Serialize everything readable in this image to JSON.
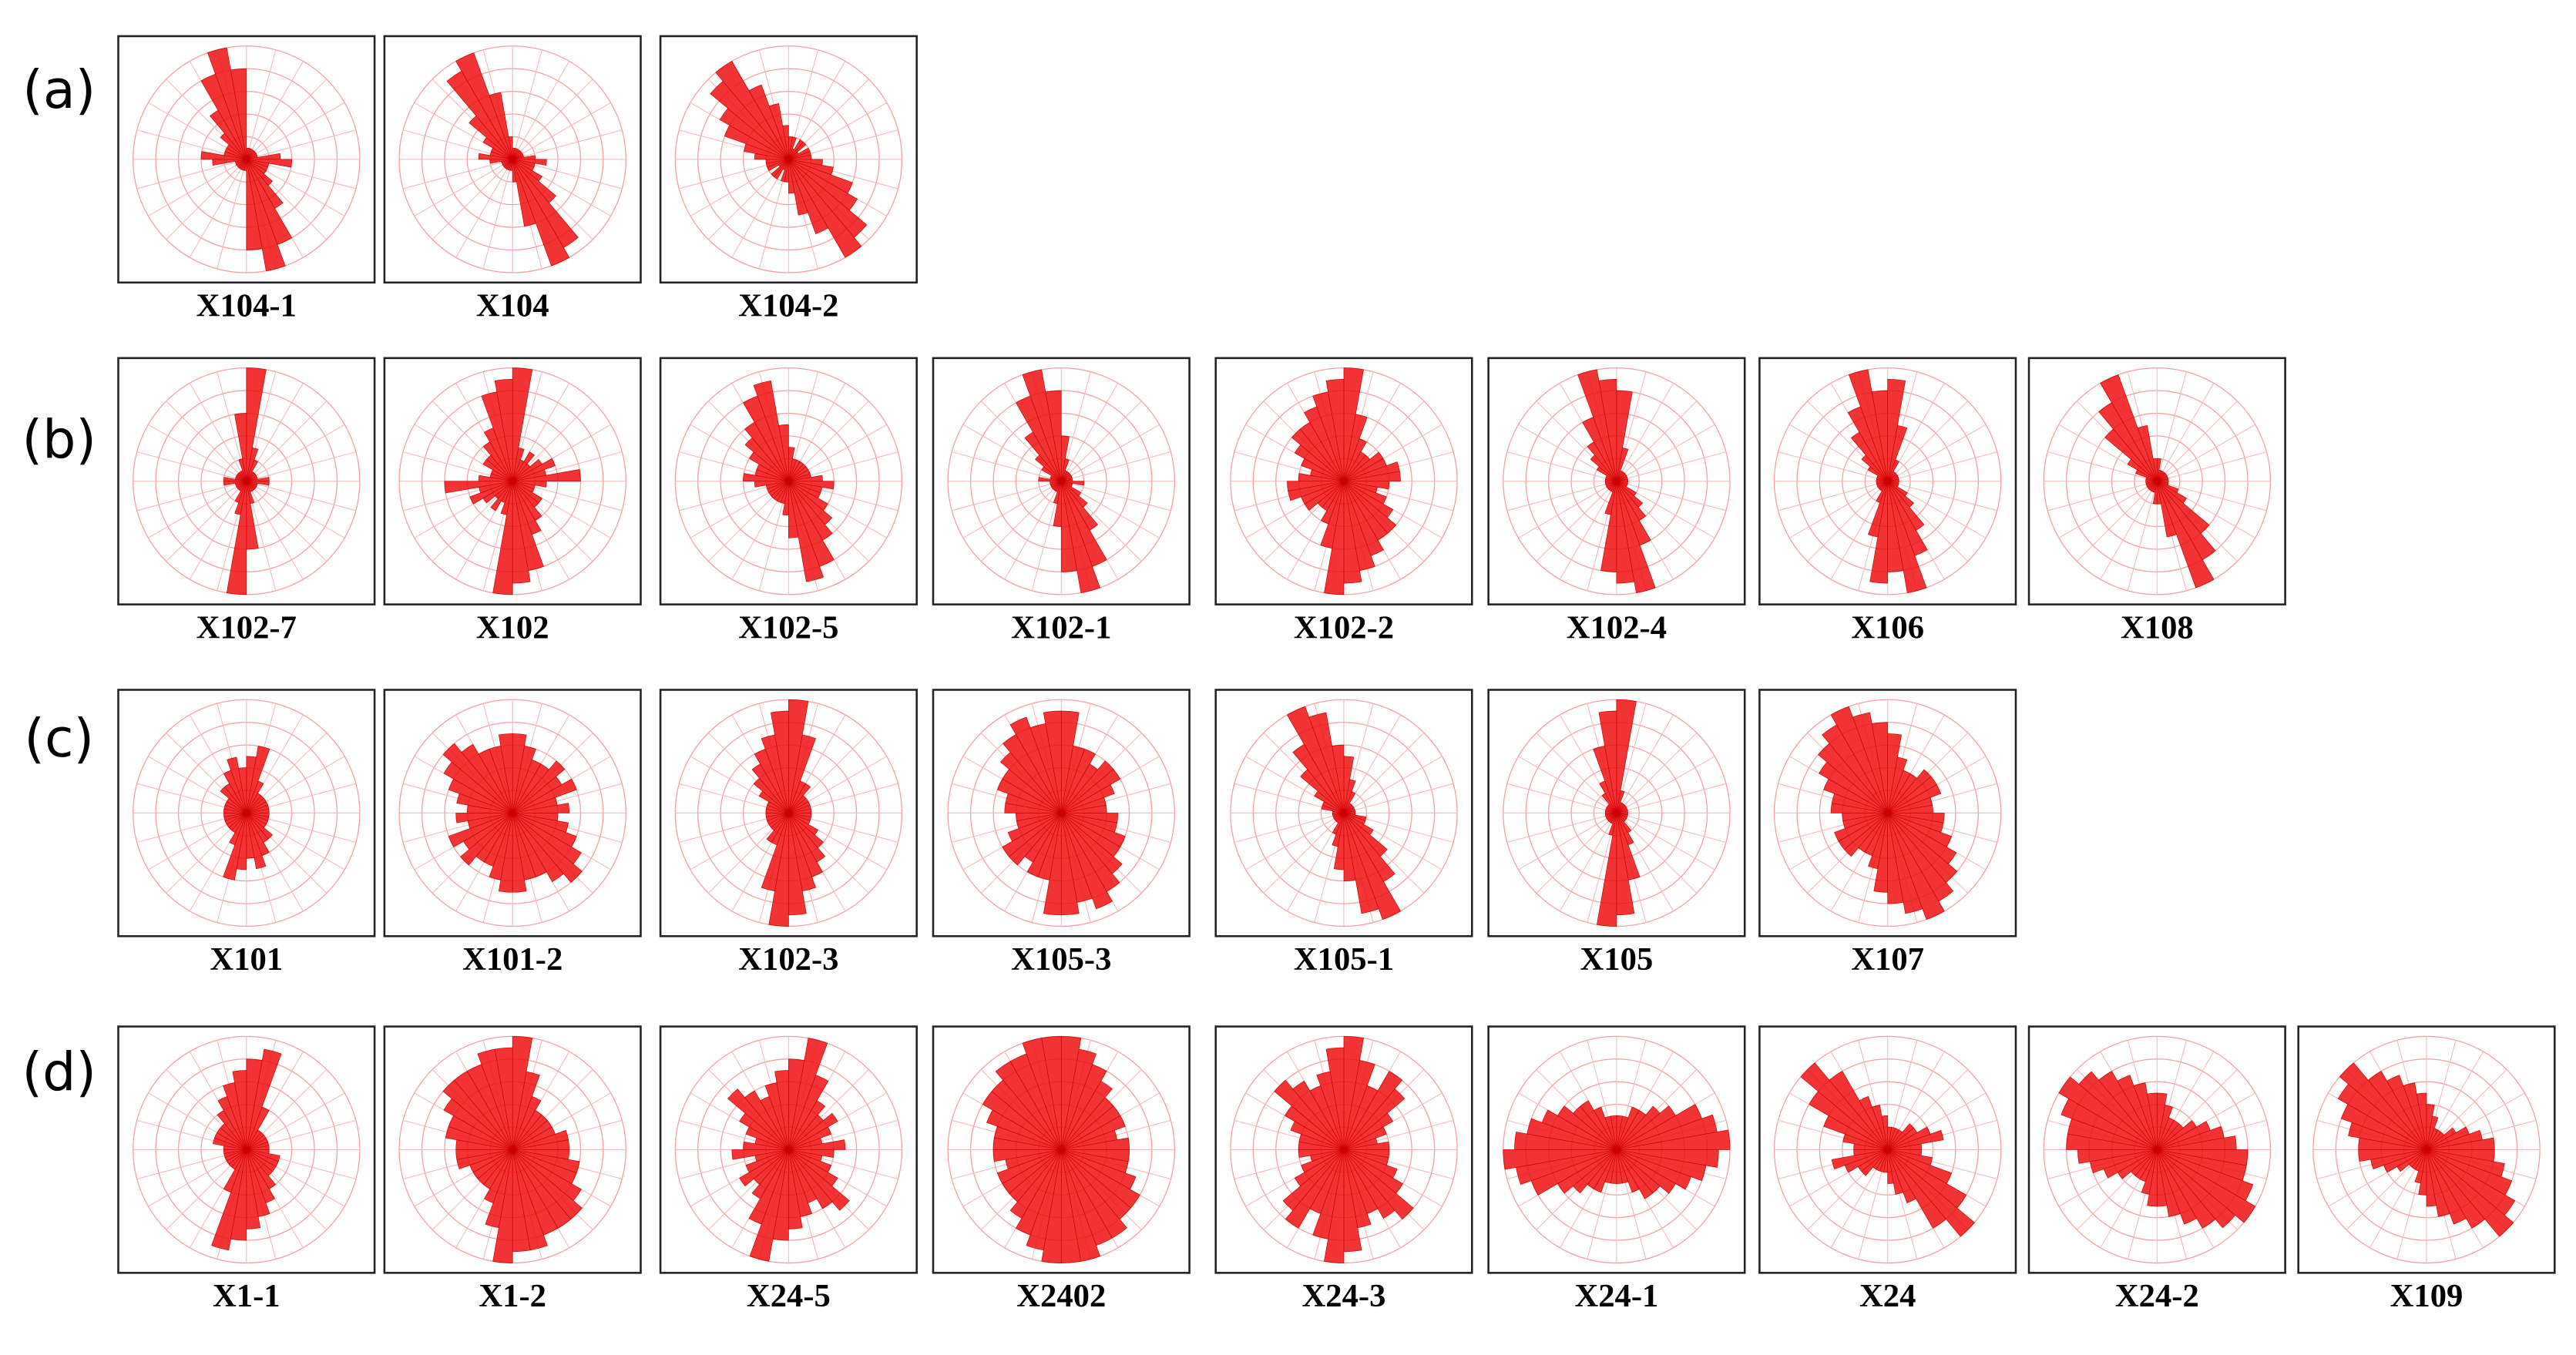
{
  "panels": [
    {
      "label": "(a)",
      "charts": [
        {
          "type": "rose",
          "title": "X104-1",
          "rlim": [
            0,
            10
          ],
          "values": [
            1,
            1,
            1,
            1,
            1,
            1,
            1,
            1,
            3,
            4,
            2,
            2,
            2,
            3,
            5,
            8,
            10,
            8
          ]
        },
        {
          "type": "rose",
          "title": "X104",
          "rlim": [
            0,
            10
          ],
          "values": [
            1,
            1,
            1,
            1,
            1,
            1,
            1,
            1,
            2,
            3,
            2,
            2,
            3,
            5,
            9,
            10,
            6,
            2
          ]
        },
        {
          "type": "rose",
          "title": "X104-2",
          "rlim": [
            0,
            10
          ],
          "values": [
            2,
            2,
            1,
            2,
            2,
            1,
            2,
            2,
            2,
            3,
            4,
            6,
            7,
            9,
            10,
            7,
            5,
            3
          ]
        }
      ]
    },
    {
      "label": "(b)",
      "charts": [
        {
          "type": "rose",
          "title": "X102-7",
          "rlim": [
            0,
            10
          ],
          "values": [
            10,
            3,
            2,
            1,
            1,
            1,
            1,
            1,
            2,
            2,
            1,
            1,
            1,
            1,
            1,
            1,
            2,
            6
          ]
        },
        {
          "type": "rose",
          "title": "X102",
          "rlim": [
            0,
            10
          ],
          "values": [
            10,
            3,
            2,
            3,
            2,
            3,
            4,
            3,
            6,
            3,
            2,
            2,
            3,
            3,
            4,
            5,
            8,
            9
          ]
        },
        {
          "type": "rose",
          "title": "X102-5",
          "rlim": [
            0,
            10
          ],
          "values": [
            3,
            2,
            2,
            2,
            2,
            2,
            2,
            2,
            3,
            4,
            3,
            3,
            4,
            5,
            6,
            8,
            9,
            5
          ]
        },
        {
          "type": "rose",
          "title": "X102-1",
          "rlim": [
            0,
            10
          ],
          "values": [
            4,
            2,
            1,
            1,
            1,
            1,
            1,
            1,
            1,
            2,
            1,
            1,
            2,
            3,
            5,
            8,
            10,
            8
          ]
        },
        {
          "type": "rose",
          "title": "X102-2",
          "rlim": [
            0,
            10
          ],
          "values": [
            10,
            6,
            4,
            3,
            3,
            4,
            4,
            5,
            5,
            4,
            3,
            4,
            5,
            6,
            6,
            7,
            8,
            9
          ]
        },
        {
          "type": "rose",
          "title": "X102-4",
          "rlim": [
            0,
            10
          ],
          "values": [
            8,
            3,
            1,
            1,
            1,
            1,
            1,
            1,
            1,
            1,
            1,
            1,
            2,
            3,
            4,
            6,
            10,
            9
          ]
        },
        {
          "type": "rose",
          "title": "X106",
          "rlim": [
            0,
            10
          ],
          "values": [
            9,
            5,
            2,
            1,
            1,
            1,
            1,
            1,
            1,
            1,
            1,
            1,
            2,
            3,
            5,
            7,
            10,
            8
          ]
        },
        {
          "type": "rose",
          "title": "X108",
          "rlim": [
            0,
            10
          ],
          "values": [
            2,
            1,
            1,
            1,
            1,
            1,
            1,
            1,
            1,
            1,
            1,
            2,
            3,
            6,
            8,
            10,
            5,
            2
          ]
        }
      ]
    },
    {
      "label": "(c)",
      "charts": [
        {
          "type": "rose",
          "title": "X101",
          "rlim": [
            0,
            10
          ],
          "values": [
            5,
            6,
            3,
            2,
            2,
            2,
            2,
            2,
            2,
            2,
            2,
            2,
            2,
            3,
            3,
            4,
            5,
            4
          ]
        },
        {
          "type": "rose",
          "title": "X101-2",
          "rlim": [
            0,
            10
          ],
          "values": [
            7,
            6,
            5,
            5,
            6,
            5,
            6,
            4,
            5,
            4,
            5,
            6,
            7,
            8,
            7,
            6,
            6,
            7
          ]
        },
        {
          "type": "rose",
          "title": "X102-3",
          "rlim": [
            0,
            10
          ],
          "values": [
            10,
            7,
            3,
            3,
            2,
            2,
            2,
            2,
            2,
            2,
            2,
            2,
            3,
            4,
            5,
            6,
            7,
            9
          ]
        },
        {
          "type": "rose",
          "title": "X105-3",
          "rlim": [
            0,
            10
          ],
          "values": [
            9,
            6,
            6,
            5,
            6,
            6,
            5,
            4,
            4,
            5,
            5,
            6,
            6,
            7,
            8,
            9,
            8,
            9
          ]
        },
        {
          "type": "rose",
          "title": "X105-1",
          "rlim": [
            0,
            10
          ],
          "values": [
            5,
            3,
            2,
            1,
            1,
            1,
            1,
            1,
            1,
            1,
            2,
            2,
            3,
            5,
            7,
            10,
            9,
            6
          ]
        },
        {
          "type": "rose",
          "title": "X105",
          "rlim": [
            0,
            10
          ],
          "values": [
            10,
            2,
            1,
            1,
            1,
            1,
            1,
            1,
            1,
            1,
            1,
            1,
            1,
            1,
            2,
            3,
            6,
            9
          ]
        },
        {
          "type": "rose",
          "title": "X107",
          "rlim": [
            0,
            10
          ],
          "values": [
            7,
            5,
            4,
            4,
            5,
            5,
            5,
            4,
            4,
            5,
            5,
            6,
            7,
            8,
            9,
            10,
            9,
            8
          ]
        }
      ]
    },
    {
      "label": "(d)",
      "charts": [
        {
          "type": "rose",
          "title": "X1-1",
          "rlim": [
            0,
            10
          ],
          "values": [
            8,
            9,
            4,
            2,
            2,
            2,
            2,
            2,
            2,
            2,
            3,
            3,
            3,
            3,
            4,
            5,
            6,
            7
          ]
        },
        {
          "type": "rose",
          "title": "X1-2",
          "rlim": [
            0,
            10
          ],
          "values": [
            10,
            7,
            5,
            4,
            4,
            4,
            4,
            5,
            5,
            5,
            6,
            6,
            7,
            8,
            8,
            8,
            9,
            9
          ]
        },
        {
          "type": "rose",
          "title": "X24-5",
          "rlim": [
            0,
            10
          ],
          "values": [
            8,
            10,
            7,
            5,
            4,
            5,
            4,
            3,
            5,
            4,
            3,
            4,
            5,
            7,
            6,
            5,
            6,
            7
          ]
        },
        {
          "type": "rose",
          "title": "X2402",
          "rlim": [
            0,
            10
          ],
          "values": [
            10,
            9,
            8,
            7,
            6,
            6,
            6,
            5,
            6,
            6,
            6,
            7,
            8,
            8,
            9,
            9,
            10,
            10
          ]
        },
        {
          "type": "rose",
          "title": "X24-3",
          "rlim": [
            0,
            10
          ],
          "values": [
            10,
            8,
            6,
            8,
            7,
            5,
            4,
            3,
            4,
            4,
            4,
            5,
            6,
            8,
            7,
            6,
            7,
            9
          ]
        },
        {
          "type": "rose",
          "title": "X24-1",
          "rlim": [
            0,
            10
          ],
          "values": [
            3,
            3,
            4,
            4,
            5,
            6,
            8,
            9,
            10,
            9,
            8,
            7,
            6,
            5,
            5,
            4,
            3,
            3
          ]
        },
        {
          "type": "rose",
          "title": "X24",
          "rlim": [
            0,
            10
          ],
          "values": [
            2,
            2,
            2,
            2,
            3,
            3,
            4,
            5,
            3,
            3,
            4,
            6,
            8,
            10,
            8,
            5,
            4,
            3
          ]
        },
        {
          "type": "rose",
          "title": "X24-2",
          "rlim": [
            0,
            10
          ],
          "values": [
            5,
            4,
            3,
            3,
            3,
            4,
            5,
            6,
            7,
            8,
            8,
            9,
            10,
            9,
            8,
            7,
            6,
            5
          ]
        },
        {
          "type": "rose",
          "title": "X109",
          "rlim": [
            0,
            10
          ],
          "values": [
            4,
            3,
            2,
            2,
            2,
            3,
            4,
            5,
            6,
            6,
            7,
            8,
            9,
            10,
            8,
            7,
            6,
            5
          ]
        }
      ]
    }
  ]
}
